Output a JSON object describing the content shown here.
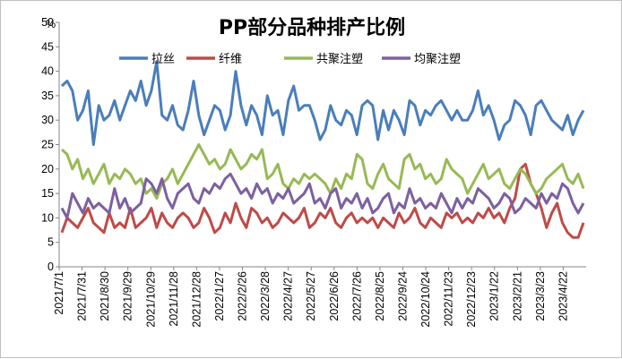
{
  "chart_data": {
    "type": "line",
    "title": "PP部分品种排产比例",
    "ylabel_unit": "%",
    "ylim": [
      0,
      50
    ],
    "yticks": [
      0,
      5,
      10,
      15,
      20,
      25,
      30,
      35,
      40,
      45,
      50
    ],
    "x_tick_labels": [
      "2021/7/1",
      "2021/7/31",
      "2021/8/30",
      "2021/9/29",
      "2021/10/29",
      "2021/11/28",
      "2021/12/28",
      "2022/1/27",
      "2022/2/26",
      "2022/3/28",
      "2022/4/27",
      "2022/5/27",
      "2022/6/26",
      "2022/7/26",
      "2022/8/25",
      "2022/9/24",
      "2022/10/24",
      "2022/11/23",
      "2022/12/23",
      "2023/1/22",
      "2023/2/21",
      "2023/3/23",
      "2023/4/22"
    ],
    "legend_position": "top",
    "grid": false,
    "series": [
      {
        "name": "拉丝",
        "color": "#4a7ebb",
        "values": [
          37,
          38,
          36,
          30,
          32,
          36,
          25,
          33,
          30,
          31,
          34,
          30,
          33,
          36,
          34,
          38,
          33,
          36,
          42,
          31,
          30,
          33,
          29,
          28,
          32,
          38,
          31,
          27,
          30,
          33,
          32,
          28,
          31,
          40,
          33,
          29,
          33,
          31,
          27,
          35,
          31,
          32,
          27,
          34,
          37,
          32,
          33,
          33,
          30,
          26,
          28,
          33,
          30,
          29,
          32,
          31,
          27,
          33,
          34,
          33,
          26,
          32,
          28,
          32,
          30,
          27,
          34,
          33,
          29,
          32,
          31,
          33,
          34,
          32,
          30,
          32,
          30,
          30,
          32,
          36,
          31,
          33,
          30,
          26,
          29,
          30,
          34,
          33,
          31,
          27,
          33,
          34,
          32,
          30,
          29,
          28,
          31,
          27,
          30,
          32
        ]
      },
      {
        "name": "纤维",
        "color": "#be4b48",
        "values": [
          7,
          10,
          9,
          8,
          10,
          12,
          9,
          8,
          7,
          11,
          8,
          9,
          8,
          12,
          8,
          9,
          10,
          12,
          8,
          11,
          9,
          8,
          10,
          11,
          10,
          8,
          9,
          12,
          10,
          7,
          8,
          11,
          9,
          13,
          10,
          8,
          12,
          11,
          9,
          10,
          8,
          9,
          11,
          10,
          9,
          10,
          12,
          8,
          9,
          11,
          10,
          12,
          9,
          8,
          10,
          11,
          9,
          10,
          9,
          10,
          8,
          10,
          9,
          8,
          11,
          9,
          10,
          12,
          9,
          8,
          10,
          9,
          8,
          11,
          10,
          11,
          9,
          10,
          9,
          11,
          10,
          12,
          10,
          11,
          9,
          12,
          14,
          20,
          21,
          17,
          15,
          12,
          8,
          11,
          13,
          9,
          7,
          6,
          6,
          9
        ]
      },
      {
        "name": "共聚注塑",
        "color": "#98b954",
        "values": [
          24,
          23,
          20,
          22,
          18,
          20,
          17,
          19,
          21,
          17,
          19,
          18,
          20,
          19,
          17,
          18,
          15,
          16,
          14,
          17,
          18,
          20,
          17,
          19,
          21,
          23,
          25,
          23,
          21,
          22,
          20,
          21,
          24,
          22,
          20,
          21,
          23,
          22,
          24,
          18,
          19,
          21,
          17,
          16,
          18,
          17,
          19,
          18,
          19,
          18,
          17,
          15,
          18,
          16,
          19,
          18,
          23,
          22,
          17,
          16,
          19,
          21,
          18,
          17,
          16,
          22,
          23,
          20,
          21,
          18,
          19,
          17,
          18,
          22,
          20,
          19,
          18,
          15,
          17,
          19,
          21,
          18,
          19,
          20,
          17,
          16,
          18,
          20,
          19,
          17,
          15,
          16,
          18,
          19,
          20,
          21,
          18,
          17,
          19,
          16
        ]
      },
      {
        "name": "均聚注塑",
        "color": "#7d60a0",
        "values": [
          12,
          10,
          15,
          13,
          11,
          14,
          12,
          13,
          12,
          11,
          16,
          12,
          14,
          11,
          12,
          13,
          18,
          17,
          15,
          18,
          14,
          12,
          15,
          16,
          17,
          14,
          13,
          16,
          15,
          17,
          16,
          18,
          19,
          17,
          15,
          16,
          14,
          17,
          15,
          16,
          13,
          15,
          14,
          16,
          13,
          14,
          15,
          17,
          13,
          14,
          12,
          15,
          16,
          12,
          14,
          13,
          15,
          12,
          14,
          11,
          12,
          14,
          15,
          11,
          13,
          12,
          16,
          13,
          14,
          12,
          13,
          12,
          15,
          13,
          11,
          14,
          12,
          14,
          13,
          16,
          15,
          14,
          12,
          13,
          15,
          14,
          11,
          12,
          14,
          13,
          12,
          15,
          13,
          15,
          14,
          17,
          16,
          13,
          11,
          13
        ]
      }
    ]
  }
}
